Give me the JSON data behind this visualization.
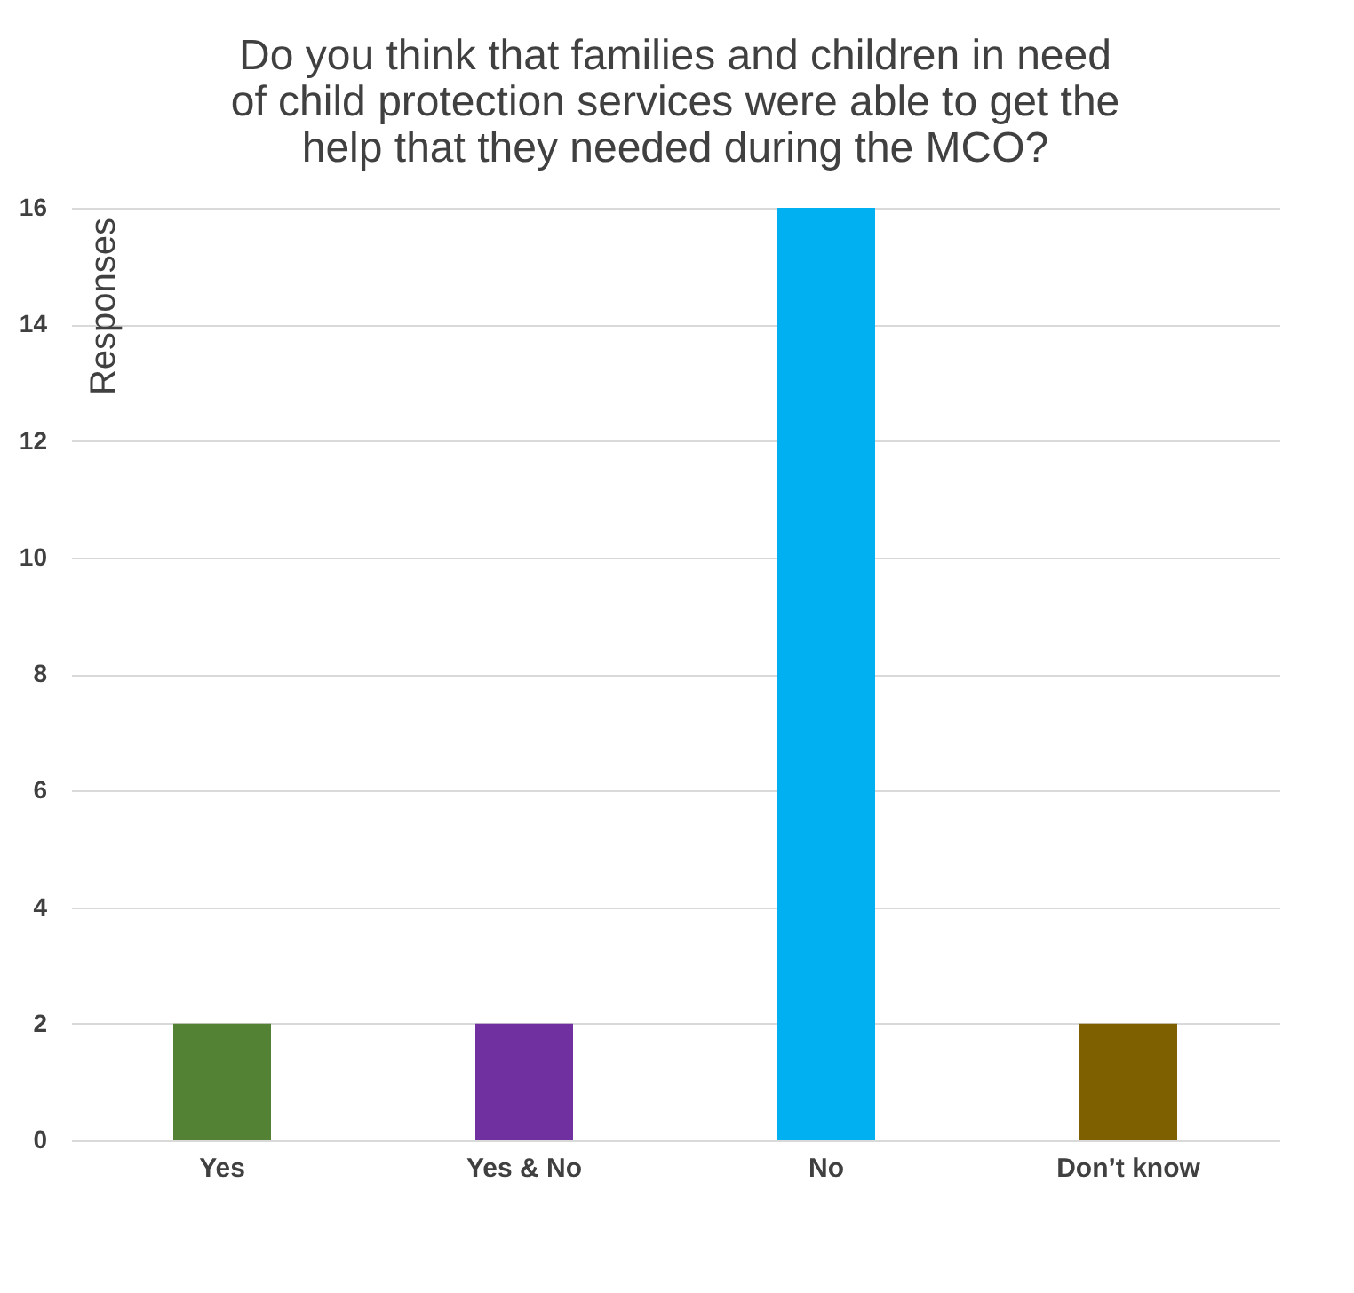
{
  "chart_data": {
    "type": "bar",
    "title": [
      "Do you think that families and children in need",
      "of child protection services were able to get the",
      "help that they needed during the MCO?"
    ],
    "ylabel": "Responses",
    "categories": [
      "Yes",
      "Yes & No",
      "No",
      "Don’t know"
    ],
    "values": [
      2,
      2,
      16,
      2
    ],
    "colors": [
      "#548235",
      "#7030a0",
      "#00b0f0",
      "#7f6000"
    ],
    "ylim": [
      0,
      16
    ],
    "yticks": [
      0,
      2,
      4,
      6,
      8,
      10,
      12,
      14,
      16
    ],
    "grid": "y"
  }
}
